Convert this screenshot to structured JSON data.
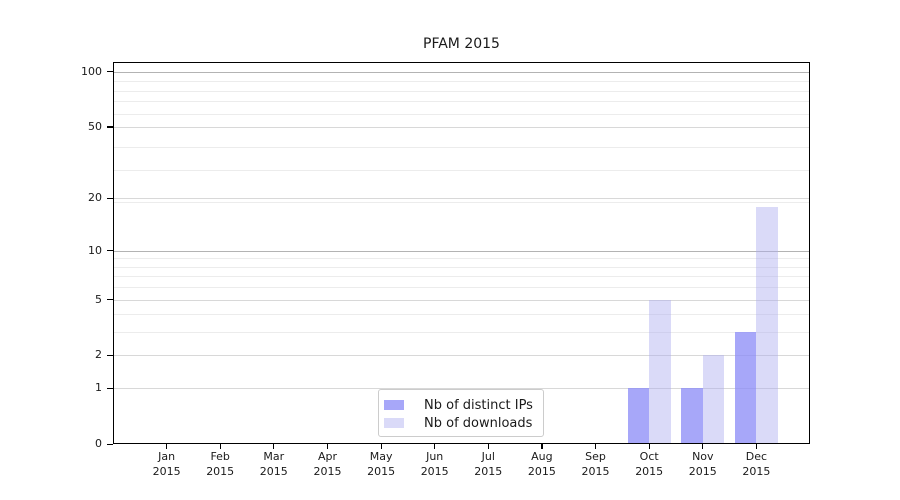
{
  "chart_data": {
    "type": "bar",
    "title": "PFAM 2015",
    "xlabel": "",
    "ylabel": "",
    "categories": [
      [
        "Jan",
        "2015"
      ],
      [
        "Feb",
        "2015"
      ],
      [
        "Mar",
        "2015"
      ],
      [
        "Apr",
        "2015"
      ],
      [
        "May",
        "2015"
      ],
      [
        "Jun",
        "2015"
      ],
      [
        "Jul",
        "2015"
      ],
      [
        "Aug",
        "2015"
      ],
      [
        "Sep",
        "2015"
      ],
      [
        "Oct",
        "2015"
      ],
      [
        "Nov",
        "2015"
      ],
      [
        "Dec",
        "2015"
      ]
    ],
    "series": [
      {
        "name": "Nb of distinct IPs",
        "key": "distinct-ips",
        "color": "rgba(140,140,247,0.77)",
        "values": [
          0,
          0,
          0,
          0,
          0,
          0,
          0,
          0,
          0,
          1,
          1,
          3
        ]
      },
      {
        "name": "Nb of downloads",
        "key": "downloads",
        "color": "rgba(172,172,240,0.45)",
        "values": [
          0,
          0,
          0,
          0,
          0,
          0,
          0,
          0,
          0,
          5,
          2,
          18
        ]
      }
    ],
    "yscale": "log1p",
    "ylim": [
      0,
      113
    ],
    "yticks": [
      0,
      1,
      2,
      5,
      10,
      20,
      50,
      100
    ],
    "minor_gridlines": [
      3,
      4,
      6,
      7,
      8,
      9,
      19,
      29,
      39,
      59,
      69,
      79,
      89
    ],
    "strong_gridlines": [
      10,
      100
    ],
    "grid": true,
    "legend_position": "bottom-center",
    "colors": {
      "grid_minor": "#ececec",
      "grid_medium": "#d8d8d8",
      "grid_strong": "#b3b3b3",
      "spine": "#000000",
      "text": "#1a1a1a",
      "background": "#ffffff"
    }
  }
}
